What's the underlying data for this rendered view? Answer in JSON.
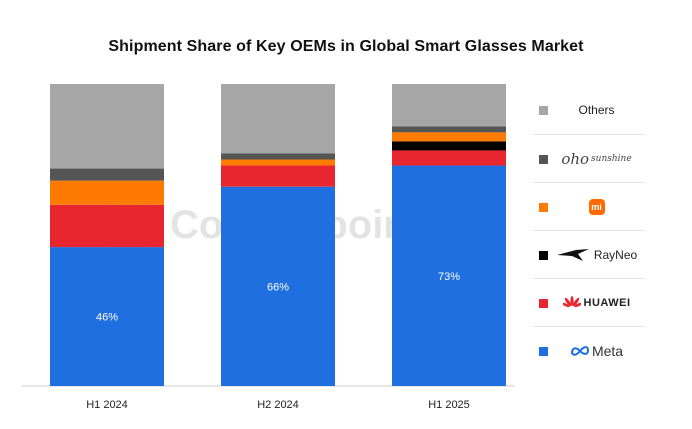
{
  "chart_data": {
    "type": "bar",
    "stacked": true,
    "title": "Shipment Share of Key OEMs in Global Smart Glasses Market",
    "categories": [
      "H1 2024",
      "H2 2024",
      "H1 2025"
    ],
    "ylim": [
      0,
      100
    ],
    "grid": false,
    "legend_position": "right",
    "series": [
      {
        "name": "Meta",
        "color": "#1f6fe0",
        "values": [
          46,
          66,
          73
        ],
        "labels": [
          "46%",
          "66%",
          "73%"
        ]
      },
      {
        "name": "HUAWEI",
        "color": "#e8262f",
        "values": [
          14,
          7,
          5
        ]
      },
      {
        "name": "RayNeo",
        "color": "#000000",
        "values": [
          0,
          0,
          3
        ]
      },
      {
        "name": "mi",
        "color": "#ff7a00",
        "values": [
          8,
          2,
          3
        ]
      },
      {
        "name": "oho sunshine",
        "color": "#555555",
        "values": [
          4,
          2,
          2
        ]
      },
      {
        "name": "Others",
        "color": "#a6a6a6",
        "values": [
          28,
          23,
          14
        ]
      }
    ]
  },
  "watermark": {
    "text": "Counterpoint"
  },
  "legend_icons": {
    "mi": "xiaomi-logo",
    "RayNeo": "rayneo-bird-logo",
    "HUAWEI": "huawei-flower-logo",
    "Meta": "meta-infinity-logo"
  }
}
